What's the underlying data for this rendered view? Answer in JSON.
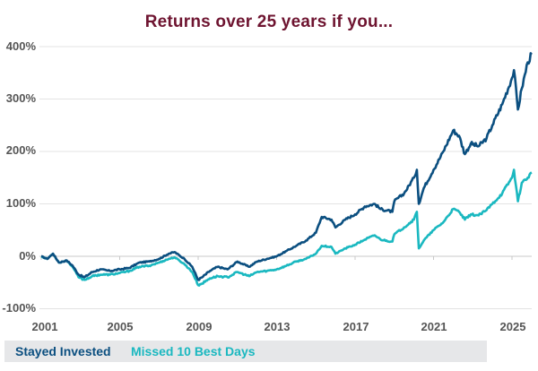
{
  "title": "Returns over 25 years if you...",
  "y_axis": {
    "ticks": [
      "400%",
      "300%",
      "200%",
      "100%",
      "0%",
      "-100%"
    ]
  },
  "x_axis": {
    "ticks": [
      "2001",
      "2005",
      "2009",
      "2013",
      "2017",
      "2021",
      "2025"
    ]
  },
  "legend": {
    "stayed": "Stayed Invested",
    "missed": "Missed 10 Best Days"
  },
  "colors": {
    "title": "#6e1430",
    "stayed": "#0b4f80",
    "missed": "#1ab8c0",
    "grid": "#e3e3e3",
    "legend_bg": "#e6e7e9"
  },
  "chart_data": {
    "type": "line",
    "title": "Returns over 25 years if you...",
    "xlabel": "",
    "ylabel": "",
    "ylim": [
      -100,
      400
    ],
    "xlim": [
      2001,
      2026
    ],
    "grid": true,
    "legend_position": "bottom",
    "x_ticks": [
      2001,
      2005,
      2009,
      2013,
      2017,
      2021,
      2025
    ],
    "y_ticks": [
      -100,
      0,
      100,
      200,
      300,
      400
    ],
    "series": [
      {
        "name": "Stayed Invested",
        "x": [
          2001.0,
          2001.3,
          2001.6,
          2001.9,
          2002.3,
          2002.6,
          2002.9,
          2003.2,
          2003.6,
          2004.0,
          2004.5,
          2005.0,
          2005.5,
          2006.0,
          2006.5,
          2007.0,
          2007.5,
          2007.8,
          2008.3,
          2008.7,
          2009.0,
          2009.2,
          2009.6,
          2010.0,
          2010.5,
          2011.0,
          2011.6,
          2012.0,
          2012.5,
          2013.0,
          2013.5,
          2014.0,
          2014.5,
          2015.0,
          2015.3,
          2015.8,
          2016.0,
          2016.5,
          2017.0,
          2017.5,
          2018.0,
          2018.3,
          2018.9,
          2019.0,
          2019.5,
          2020.0,
          2020.15,
          2020.25,
          2020.5,
          2021.0,
          2021.5,
          2022.0,
          2022.3,
          2022.6,
          2022.9,
          2023.3,
          2023.7,
          2024.0,
          2024.5,
          2025.0,
          2025.1,
          2025.3,
          2025.5,
          2025.8,
          2026.0
        ],
        "values": [
          0,
          -5,
          5,
          -12,
          -8,
          -18,
          -35,
          -40,
          -30,
          -25,
          -28,
          -25,
          -22,
          -12,
          -10,
          -5,
          5,
          8,
          -5,
          -20,
          -45,
          -40,
          -28,
          -20,
          -25,
          -10,
          -20,
          -10,
          -5,
          0,
          10,
          20,
          30,
          45,
          75,
          70,
          55,
          70,
          80,
          95,
          100,
          90,
          85,
          105,
          120,
          150,
          165,
          100,
          130,
          165,
          200,
          240,
          230,
          195,
          215,
          210,
          225,
          250,
          290,
          340,
          355,
          280,
          320,
          370,
          385
        ]
      },
      {
        "name": "Missed 10 Best Days",
        "x": [
          2001.0,
          2001.3,
          2001.6,
          2001.9,
          2002.3,
          2002.6,
          2002.9,
          2003.2,
          2003.6,
          2004.0,
          2004.5,
          2005.0,
          2005.5,
          2006.0,
          2006.5,
          2007.0,
          2007.5,
          2007.8,
          2008.3,
          2008.7,
          2009.0,
          2009.2,
          2009.6,
          2010.0,
          2010.5,
          2011.0,
          2011.6,
          2012.0,
          2012.5,
          2013.0,
          2013.5,
          2014.0,
          2014.5,
          2015.0,
          2015.3,
          2015.8,
          2016.0,
          2016.5,
          2017.0,
          2017.5,
          2018.0,
          2018.3,
          2018.9,
          2019.0,
          2019.5,
          2020.0,
          2020.15,
          2020.25,
          2020.5,
          2021.0,
          2021.5,
          2022.0,
          2022.3,
          2022.6,
          2022.9,
          2023.3,
          2023.7,
          2024.0,
          2024.5,
          2025.0,
          2025.1,
          2025.3,
          2025.5,
          2025.8,
          2026.0
        ],
        "values": [
          0,
          -5,
          5,
          -12,
          -8,
          -20,
          -40,
          -45,
          -38,
          -35,
          -35,
          -32,
          -28,
          -20,
          -18,
          -12,
          -5,
          -2,
          -15,
          -30,
          -55,
          -52,
          -42,
          -38,
          -40,
          -30,
          -38,
          -30,
          -28,
          -25,
          -18,
          -10,
          -5,
          5,
          20,
          18,
          5,
          15,
          22,
          32,
          40,
          32,
          28,
          42,
          55,
          70,
          85,
          15,
          30,
          50,
          65,
          90,
          85,
          70,
          80,
          78,
          88,
          100,
          120,
          150,
          165,
          105,
          140,
          150,
          160
        ]
      }
    ]
  }
}
